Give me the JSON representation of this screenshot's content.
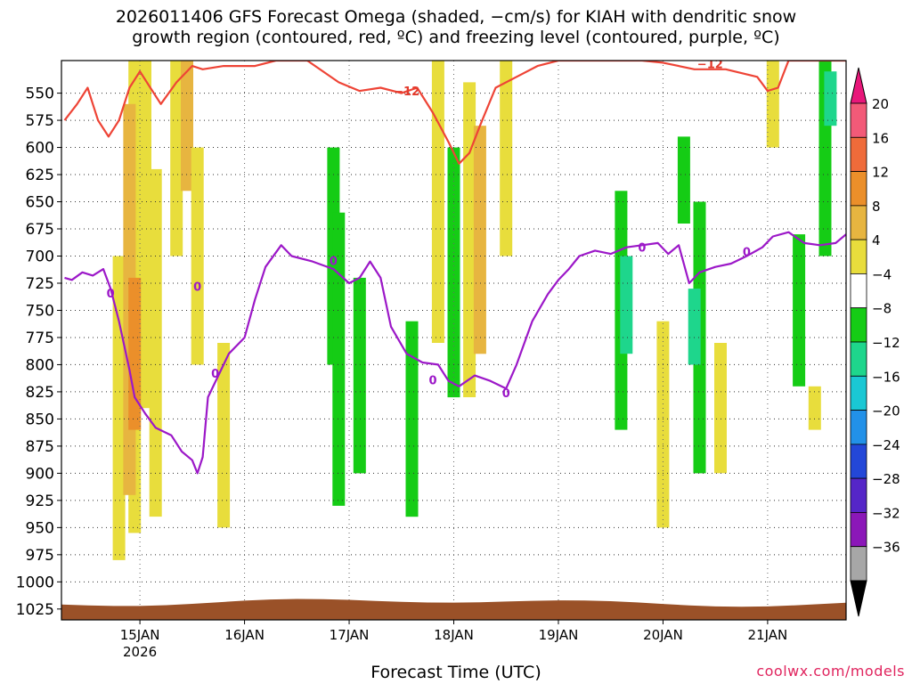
{
  "title_line1": "2026011406 GFS Forecast Omega (shaded, −cm/s) for KIAH with dendritic snow",
  "title_line2": "growth region (contoured, red, ºC) and freezing level (contoured, purple, ºC)",
  "xlabel": "Forecast Time (UTC)",
  "credit": "coolwx.com/models",
  "chart_data": {
    "type": "heatmap",
    "xaxis": {
      "ticks": [
        "15JAN",
        "16JAN",
        "17JAN",
        "18JAN",
        "19JAN",
        "20JAN",
        "21JAN"
      ],
      "year_label": "2026",
      "range_days": [
        14.25,
        21.75
      ]
    },
    "yaxis": {
      "label_units": "hPa",
      "ticks": [
        550,
        575,
        600,
        625,
        650,
        675,
        700,
        725,
        750,
        775,
        800,
        825,
        850,
        875,
        900,
        925,
        950,
        975,
        1000,
        1025
      ],
      "range": [
        1035,
        520
      ]
    },
    "grid": true,
    "colorbar": {
      "labels": [
        "20",
        "16",
        "12",
        "8",
        "4",
        "−4",
        "−8",
        "−12",
        "−16",
        "−20",
        "−24",
        "−28",
        "−32",
        "−36"
      ],
      "colors": [
        "#f25a78",
        "#ef6b3a",
        "#eb8f2a",
        "#e7b540",
        "#e8dd3c",
        "#ffffff",
        "#15cc15",
        "#1ed68c",
        "#1ac8d4",
        "#2291e8",
        "#2347d8",
        "#5526c8",
        "#8b17b8",
        "#a7a7a7"
      ],
      "top_arrow_color": "#e8177a",
      "bottom_arrow_color": "#000000"
    },
    "omega_cells": [
      {
        "day": 14.95,
        "p_top": 520,
        "p_bot": 955,
        "level": 4
      },
      {
        "day": 15.05,
        "p_top": 520,
        "p_bot": 840,
        "level": 4
      },
      {
        "day": 14.8,
        "p_top": 700,
        "p_bot": 980,
        "level": 4
      },
      {
        "day": 14.9,
        "p_top": 560,
        "p_bot": 920,
        "level": 8
      },
      {
        "day": 14.95,
        "p_top": 720,
        "p_bot": 860,
        "level": 12
      },
      {
        "day": 15.15,
        "p_top": 620,
        "p_bot": 940,
        "level": 4
      },
      {
        "day": 15.35,
        "p_top": 520,
        "p_bot": 700,
        "level": 4
      },
      {
        "day": 15.45,
        "p_top": 520,
        "p_bot": 640,
        "level": 8
      },
      {
        "day": 15.55,
        "p_top": 600,
        "p_bot": 800,
        "level": 4
      },
      {
        "day": 15.8,
        "p_top": 780,
        "p_bot": 950,
        "level": 4
      },
      {
        "day": 16.85,
        "p_top": 600,
        "p_bot": 800,
        "level": -4
      },
      {
        "day": 16.9,
        "p_top": 660,
        "p_bot": 930,
        "level": -4
      },
      {
        "day": 17.1,
        "p_top": 720,
        "p_bot": 900,
        "level": -4
      },
      {
        "day": 17.6,
        "p_top": 760,
        "p_bot": 940,
        "level": -4
      },
      {
        "day": 17.85,
        "p_top": 520,
        "p_bot": 780,
        "level": 4
      },
      {
        "day": 18.0,
        "p_top": 600,
        "p_bot": 830,
        "level": -4
      },
      {
        "day": 18.15,
        "p_top": 540,
        "p_bot": 830,
        "level": 4
      },
      {
        "day": 18.25,
        "p_top": 580,
        "p_bot": 790,
        "level": 8
      },
      {
        "day": 18.5,
        "p_top": 520,
        "p_bot": 700,
        "level": 4
      },
      {
        "day": 19.6,
        "p_top": 640,
        "p_bot": 860,
        "level": -4
      },
      {
        "day": 19.65,
        "p_top": 700,
        "p_bot": 790,
        "level": -8
      },
      {
        "day": 20.0,
        "p_top": 760,
        "p_bot": 950,
        "level": 4
      },
      {
        "day": 20.2,
        "p_top": 590,
        "p_bot": 670,
        "level": -4
      },
      {
        "day": 20.35,
        "p_top": 650,
        "p_bot": 900,
        "level": -4
      },
      {
        "day": 20.3,
        "p_top": 730,
        "p_bot": 800,
        "level": -8
      },
      {
        "day": 20.55,
        "p_top": 780,
        "p_bot": 900,
        "level": 4
      },
      {
        "day": 21.05,
        "p_top": 520,
        "p_bot": 600,
        "level": 4
      },
      {
        "day": 21.3,
        "p_top": 680,
        "p_bot": 820,
        "level": -4
      },
      {
        "day": 21.55,
        "p_top": 520,
        "p_bot": 700,
        "level": -4
      },
      {
        "day": 21.6,
        "p_top": 530,
        "p_bot": 580,
        "level": -8
      },
      {
        "day": 21.45,
        "p_top": 820,
        "p_bot": 860,
        "level": 4
      }
    ],
    "contour_labels": {
      "dgz": "−12",
      "freezing": "0"
    },
    "dgz_contour": [
      [
        14.28,
        575
      ],
      [
        14.4,
        560
      ],
      [
        14.5,
        545
      ],
      [
        14.55,
        560
      ],
      [
        14.6,
        575
      ],
      [
        14.7,
        590
      ],
      [
        14.8,
        575
      ],
      [
        14.9,
        545
      ],
      [
        15.0,
        530
      ],
      [
        15.1,
        545
      ],
      [
        15.2,
        560
      ],
      [
        15.35,
        540
      ],
      [
        15.5,
        525
      ],
      [
        15.6,
        528
      ],
      [
        15.8,
        525
      ],
      [
        16.1,
        525
      ],
      [
        16.3,
        520
      ],
      [
        16.6,
        520
      ],
      [
        16.9,
        540
      ],
      [
        17.1,
        548
      ],
      [
        17.3,
        545
      ],
      [
        17.5,
        550
      ],
      [
        17.65,
        545
      ],
      [
        17.8,
        568
      ],
      [
        17.95,
        595
      ],
      [
        18.05,
        615
      ],
      [
        18.15,
        605
      ],
      [
        18.25,
        580
      ],
      [
        18.4,
        545
      ],
      [
        18.6,
        535
      ],
      [
        18.8,
        525
      ],
      [
        19.0,
        520
      ],
      [
        19.6,
        520
      ],
      [
        19.8,
        520
      ],
      [
        20.0,
        522
      ],
      [
        20.3,
        528
      ],
      [
        20.6,
        528
      ],
      [
        20.9,
        535
      ],
      [
        21.0,
        548
      ],
      [
        21.1,
        545
      ],
      [
        21.2,
        520
      ],
      [
        21.75,
        520
      ]
    ],
    "freezing_contour": [
      [
        14.28,
        720
      ],
      [
        14.35,
        722
      ],
      [
        14.45,
        715
      ],
      [
        14.55,
        718
      ],
      [
        14.65,
        712
      ],
      [
        14.72,
        730
      ],
      [
        14.8,
        760
      ],
      [
        14.9,
        805
      ],
      [
        14.95,
        830
      ],
      [
        15.05,
        845
      ],
      [
        15.15,
        858
      ],
      [
        15.3,
        865
      ],
      [
        15.4,
        880
      ],
      [
        15.5,
        888
      ],
      [
        15.55,
        900
      ],
      [
        15.6,
        885
      ],
      [
        15.65,
        830
      ],
      [
        15.75,
        810
      ],
      [
        15.85,
        790
      ],
      [
        16.0,
        775
      ],
      [
        16.1,
        740
      ],
      [
        16.2,
        710
      ],
      [
        16.35,
        690
      ],
      [
        16.45,
        700
      ],
      [
        16.65,
        705
      ],
      [
        16.85,
        712
      ],
      [
        17.0,
        725
      ],
      [
        17.1,
        720
      ],
      [
        17.2,
        705
      ],
      [
        17.3,
        720
      ],
      [
        17.4,
        765
      ],
      [
        17.55,
        790
      ],
      [
        17.7,
        798
      ],
      [
        17.85,
        800
      ],
      [
        17.95,
        815
      ],
      [
        18.05,
        820
      ],
      [
        18.2,
        810
      ],
      [
        18.35,
        815
      ],
      [
        18.5,
        822
      ],
      [
        18.6,
        800
      ],
      [
        18.75,
        760
      ],
      [
        18.9,
        735
      ],
      [
        19.0,
        722
      ],
      [
        19.1,
        712
      ],
      [
        19.2,
        700
      ],
      [
        19.35,
        695
      ],
      [
        19.5,
        698
      ],
      [
        19.65,
        692
      ],
      [
        19.8,
        690
      ],
      [
        19.95,
        688
      ],
      [
        20.05,
        698
      ],
      [
        20.15,
        690
      ],
      [
        20.25,
        725
      ],
      [
        20.35,
        715
      ],
      [
        20.5,
        710
      ],
      [
        20.65,
        707
      ],
      [
        20.8,
        700
      ],
      [
        20.95,
        692
      ],
      [
        21.05,
        682
      ],
      [
        21.2,
        678
      ],
      [
        21.35,
        688
      ],
      [
        21.5,
        690
      ],
      [
        21.65,
        688
      ],
      [
        21.75,
        680
      ]
    ],
    "terrain_color": "#9a5128"
  }
}
